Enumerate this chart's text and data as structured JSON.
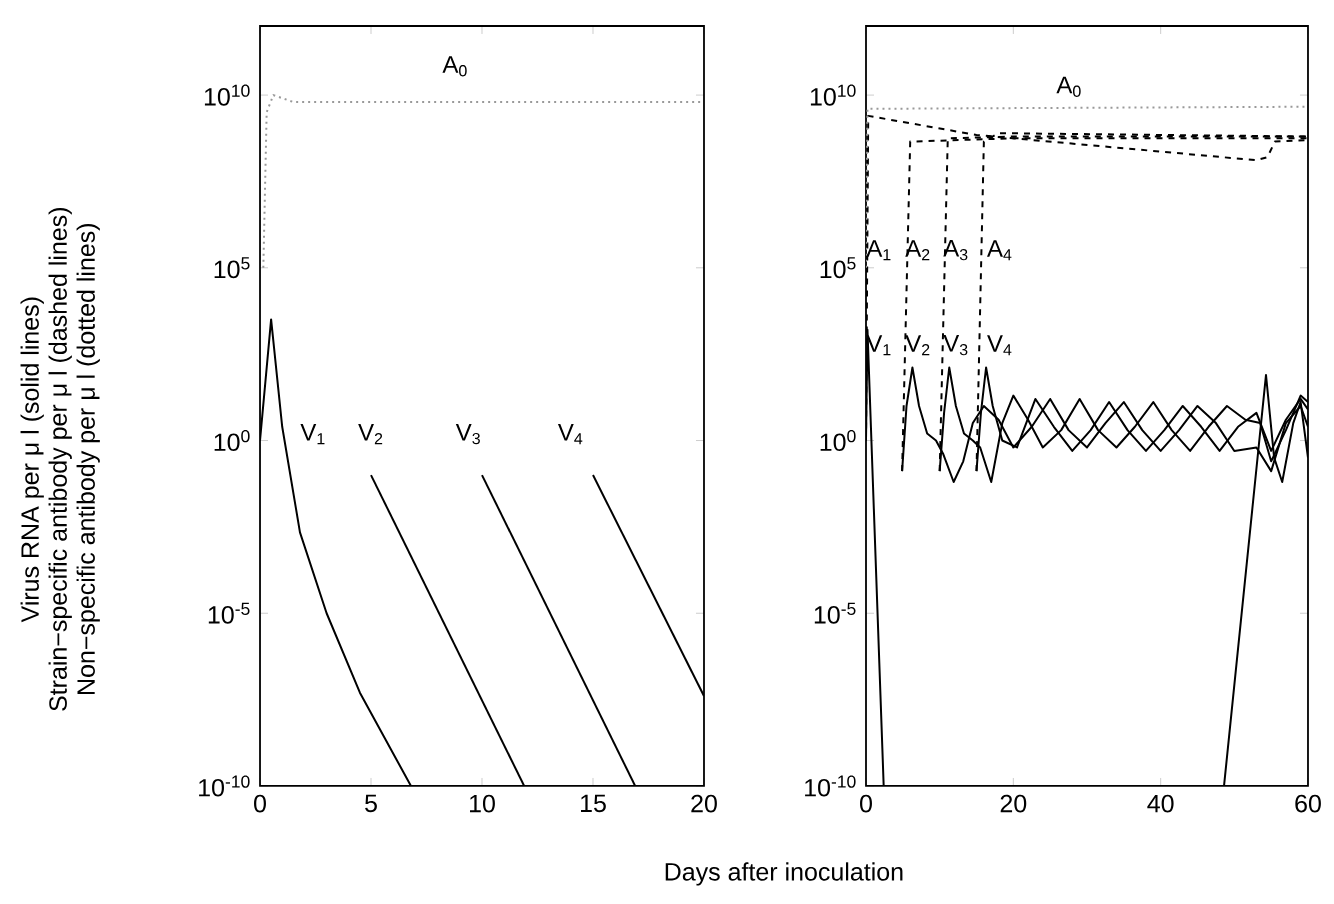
{
  "chart_data": [
    {
      "type": "line",
      "ylabel": "Virus RNA per μ l (solid lines) Strain−specific antibody per μ l (dashed lines) Non−specific antibody per μ l (dotted lines)",
      "xlabel": "Days after inoculation",
      "log": "y",
      "xlim": [
        0,
        20
      ],
      "ylim": [
        1e-10,
        1000000000000.0
      ],
      "xticks": [
        0,
        5,
        10,
        15,
        20
      ],
      "yticks": [
        {
          "value": 1e-10,
          "label": "10$^{-10}$"
        },
        {
          "value": 1e-05,
          "label": "10$^{-5}$"
        },
        {
          "value": 1,
          "label": "10$^{0}$"
        },
        {
          "value": 100000.0,
          "label": "10$^{5}$"
        },
        {
          "value": 10000000000.0,
          "label": "10$^{10}$"
        }
      ],
      "series": [
        {
          "color": "#000000",
          "line_style": "solid",
          "x": [
            0,
            0.5,
            1,
            1.8,
            3,
            4.5,
            6.8
          ],
          "values": [
            1,
            3200,
            2.5,
            0.0022,
            1e-05,
            5e-08,
            1e-10
          ]
        },
        {
          "color": "#000000",
          "line_style": "solid",
          "x": [
            5,
            11.9
          ],
          "values": [
            0.1,
            1e-10
          ]
        },
        {
          "color": "#000000",
          "line_style": "solid",
          "x": [
            10,
            16.9
          ],
          "values": [
            0.1,
            1e-10
          ]
        },
        {
          "color": "#000000",
          "line_style": "solid",
          "x": [
            15,
            20
          ],
          "values": [
            0.1,
            4e-08
          ]
        },
        {
          "color": "#999999",
          "line_style": "dotted",
          "x": [
            0.15,
            0.3,
            0.6,
            1.5,
            20
          ],
          "values": [
            100000.0,
            3200000000.0,
            10000000000.0,
            6300000000.0,
            6300000000.0
          ]
        }
      ],
      "annotations": [
        "A$_{0}$",
        "V$_{1}$",
        "V$_{2}$",
        "V$_{3}$",
        "V$_{4}$"
      ]
    },
    {
      "type": "line",
      "log": "y",
      "xlim": [
        0,
        60
      ],
      "ylim": [
        1e-10,
        1000000000000.0
      ],
      "xticks": [
        0,
        20,
        40,
        60
      ],
      "yticks": [
        {
          "value": 1e-10,
          "label": "10$^{-10}$"
        },
        {
          "value": 1e-05,
          "label": "10$^{-5}$"
        },
        {
          "value": 1,
          "label": "10$^{0}$"
        },
        {
          "value": 100000.0,
          "label": "10$^{5}$"
        },
        {
          "value": 10000000000.0,
          "label": "10$^{10}$"
        }
      ],
      "series": [
        {
          "color": "#000000",
          "line_style": "solid",
          "x": [
            0,
            0.2,
            2.4,
            25,
            48.6,
            54.3,
            55.4,
            56.5,
            58,
            59,
            60
          ],
          "values": [
            1,
            1600,
            1e-10,
            null,
            1e-10,
            79,
            0.32,
            0.063,
            3.2,
            13,
            0.32
          ]
        },
        {
          "color": "#000000",
          "line_style": "solid",
          "x": [
            4.9,
            5.5,
            6.3,
            7.2,
            8.3,
            9.5,
            10.5,
            11.9,
            13.2,
            14.5,
            16,
            18,
            20,
            22.5,
            25,
            27.5,
            30,
            32.5,
            35,
            37.5,
            40,
            42.5,
            45,
            47.5,
            50,
            53,
            55,
            57,
            59,
            60
          ],
          "values": [
            0.13,
            10,
            130,
            10,
            1.6,
            1,
            0.4,
            0.063,
            0.25,
            3.2,
            10,
            4,
            0.63,
            2.5,
            16,
            2,
            0.63,
            3.2,
            13,
            2,
            0.5,
            2,
            10,
            3.2,
            0.5,
            0.63,
            0.13,
            3.2,
            10,
            2.5
          ]
        },
        {
          "color": "#000000",
          "line_style": "solid",
          "x": [
            10,
            10.6,
            11.3,
            12.2,
            13.3,
            14.5,
            15.5,
            17,
            18.5,
            20,
            22,
            24,
            26.5,
            29,
            31.5,
            34,
            36.5,
            39,
            41.5,
            44,
            46.5,
            49,
            51.5,
            53.5,
            55,
            57,
            59,
            60
          ],
          "values": [
            0.13,
            6.3,
            130,
            10,
            1.6,
            1,
            0.63,
            0.063,
            3.2,
            20,
            4,
            0.63,
            2,
            16,
            2,
            0.63,
            2.5,
            13,
            2,
            0.5,
            2.5,
            10,
            4,
            3.2,
            0.25,
            2,
            20,
            13
          ]
        },
        {
          "color": "#000000",
          "line_style": "solid",
          "x": [
            15,
            15.6,
            16.3,
            17.2,
            18.5,
            20.5,
            23,
            25.5,
            28,
            30.5,
            33,
            35.5,
            38,
            40.5,
            43,
            45.5,
            48,
            50.5,
            53,
            55,
            57,
            59,
            60
          ],
          "values": [
            0.13,
            6.3,
            130,
            10,
            1,
            0.63,
            16,
            2.5,
            0.5,
            2,
            13,
            2,
            0.5,
            2,
            10,
            2.5,
            0.5,
            2.5,
            6.3,
            0.5,
            4,
            16,
            7.9
          ]
        },
        {
          "color": "#000000",
          "line_style": "dashed",
          "x": [
            0,
            0.3,
            15,
            53,
            54.5,
            55.5,
            60
          ],
          "values": [
            1,
            2500000000.0,
            700000000.0,
            130000000.0,
            160000000.0,
            450000000.0,
            500000000.0
          ]
        },
        {
          "color": "#000000",
          "line_style": "dashed",
          "x": [
            4.9,
            6,
            20,
            60
          ],
          "values": [
            0.13,
            450000000.0,
            560000000.0,
            560000000.0
          ]
        },
        {
          "color": "#000000",
          "line_style": "dashed",
          "x": [
            10,
            11.1,
            20,
            60
          ],
          "values": [
            0.13,
            560000000.0,
            630000000.0,
            630000000.0
          ]
        },
        {
          "color": "#000000",
          "line_style": "dashed",
          "x": [
            15,
            16,
            18,
            60
          ],
          "values": [
            0.13,
            450000000.0,
            790000000.0,
            630000000.0
          ]
        },
        {
          "color": "#999999",
          "line_style": "dotted",
          "x": [
            0,
            0.2,
            60
          ],
          "values": [
            100000.0,
            4000000000.0,
            4600000000.0
          ]
        }
      ],
      "annotations": [
        "A$_{0}$",
        "A$_{1}$",
        "A$_{2}$",
        "A$_{3}$",
        "A$_{4}$",
        "V$_{1}$",
        "V$_{2}$",
        "V$_{3}$",
        "V$_{4}$"
      ]
    }
  ]
}
